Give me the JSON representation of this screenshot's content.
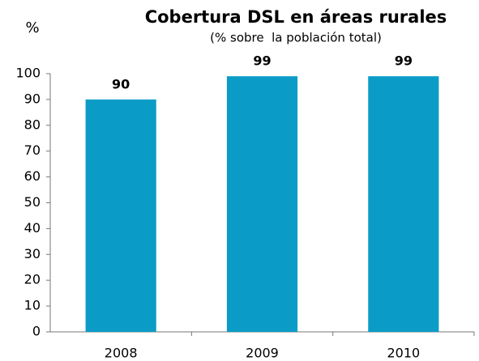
{
  "chart_data": {
    "type": "bar",
    "title": "Cobertura DSL en áreas rurales",
    "subtitle": "(% sobre  la población total)",
    "y_label": "%",
    "categories": [
      "2008",
      "2009",
      "2010"
    ],
    "values": [
      90,
      99,
      99
    ],
    "color": "#0a9cc7",
    "ylim": [
      0,
      100
    ],
    "yticks": [
      0,
      10,
      20,
      30,
      40,
      50,
      60,
      70,
      80,
      90,
      100
    ],
    "grid": false,
    "data_labels": true
  }
}
